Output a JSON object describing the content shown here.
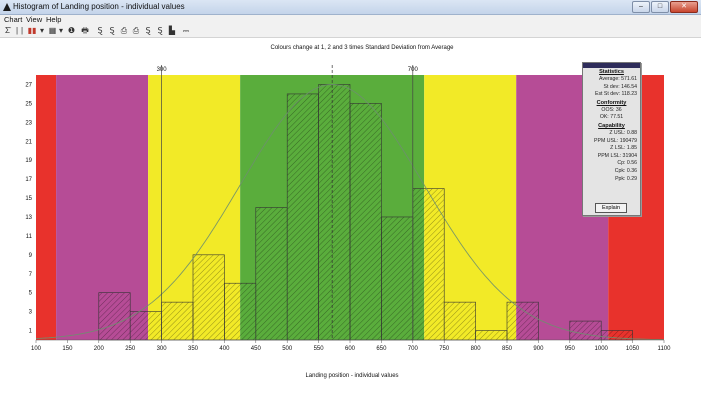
{
  "window": {
    "title": "Histogram of Landing position - individual values",
    "controls": [
      "–",
      "□",
      "✕"
    ]
  },
  "menu": {
    "items": [
      "Chart",
      "View",
      "Help"
    ]
  },
  "toolbar": {
    "glyphs": [
      "Σ̄",
      "|",
      "|",
      "▮▮",
      "▾",
      "▦",
      "▾",
      "❶",
      "🖶",
      "Ȿ",
      "Ȿ",
      "⎙",
      "⎙",
      "Ȿ",
      "Ȿ",
      "▙",
      "⎓"
    ]
  },
  "chart_data": {
    "type": "bar",
    "title": "Colours change at 1, 2 and 3 times Standard Deviation from Average",
    "xlabel": "Landing position - individual values",
    "xlim": [
      100,
      1100
    ],
    "ylim": [
      0,
      28
    ],
    "x_ticks": [
      100,
      150,
      200,
      250,
      300,
      350,
      400,
      450,
      500,
      550,
      600,
      650,
      700,
      750,
      800,
      850,
      900,
      950,
      1000,
      1050,
      1100
    ],
    "y_ticks": [
      1,
      3,
      5,
      7,
      9,
      11,
      13,
      15,
      17,
      19,
      21,
      23,
      25,
      27
    ],
    "bin_width": 50,
    "bins": [
      {
        "start": 200,
        "count": 5
      },
      {
        "start": 250,
        "count": 3
      },
      {
        "start": 300,
        "count": 4
      },
      {
        "start": 350,
        "count": 9
      },
      {
        "start": 400,
        "count": 6
      },
      {
        "start": 450,
        "count": 14
      },
      {
        "start": 500,
        "count": 26
      },
      {
        "start": 550,
        "count": 27
      },
      {
        "start": 600,
        "count": 25
      },
      {
        "start": 650,
        "count": 13
      },
      {
        "start": 700,
        "count": 16
      },
      {
        "start": 750,
        "count": 4
      },
      {
        "start": 800,
        "count": 1
      },
      {
        "start": 850,
        "count": 4
      },
      {
        "start": 950,
        "count": 2
      },
      {
        "start": 1000,
        "count": 1
      }
    ],
    "average": 571.61,
    "std_dev": 146.54,
    "spec_limits": {
      "lsl": 300,
      "usl": 700
    },
    "zones": [
      {
        "from": 100,
        "to": 131.99,
        "color": "#e8322c"
      },
      {
        "from": 131.99,
        "to": 278.53,
        "color": "#b64c96"
      },
      {
        "from": 278.53,
        "to": 425.07,
        "color": "#f2ea27"
      },
      {
        "from": 425.07,
        "to": 718.15,
        "color": "#5aad3c"
      },
      {
        "from": 718.15,
        "to": 864.69,
        "color": "#f2ea27"
      },
      {
        "from": 864.69,
        "to": 1011.23,
        "color": "#b64c96"
      },
      {
        "from": 1011.23,
        "to": 1100,
        "color": "#e8322c"
      }
    ],
    "normal_curve": true
  },
  "stats": {
    "title": "Statistics",
    "average": "Average: 571.61",
    "st_dev": "St dev: 146.54",
    "est_st_dev": "Est St dev: 118.23",
    "conformity_title": "Conformity",
    "oos": "OOS: 36",
    "ok": "OK: 77.51",
    "capability_title": "Capability",
    "z_usl": "Z USL: 0.88",
    "ppm_usl": "PPM USL: 190479",
    "z_lsl": "Z LSL: 1.85",
    "ppm_lsl": "PPM LSL: 31904",
    "cp": "Cp: 0.56",
    "cpk": "Cpk: 0.36",
    "ppk": "Ppk: 0.29",
    "explain_label": "Explain"
  }
}
